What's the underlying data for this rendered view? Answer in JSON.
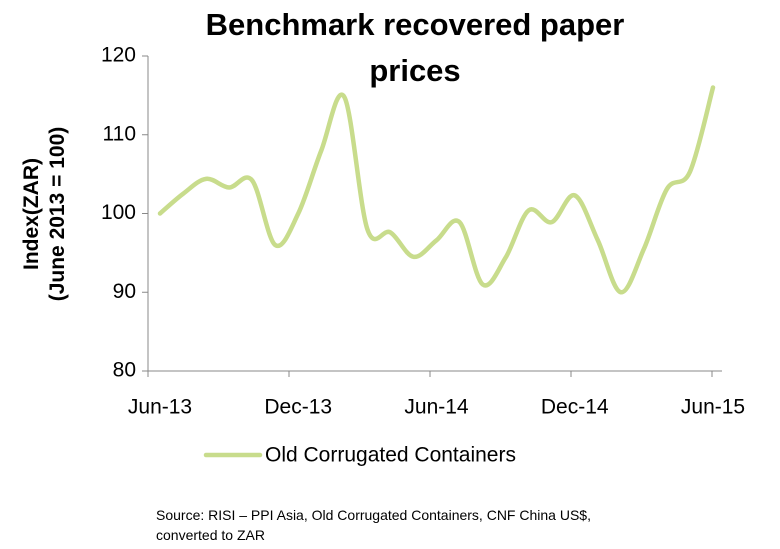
{
  "chart_data": {
    "type": "line",
    "title": "Benchmark recovered paper\nprices",
    "y_label": "Index(ZAR)\n(June 2013 = 100)",
    "categories": [
      "Jun-13",
      null,
      null,
      null,
      null,
      null,
      "Dec-13",
      null,
      null,
      null,
      null,
      null,
      "Jun-14",
      null,
      null,
      null,
      null,
      null,
      "Dec-14",
      null,
      null,
      null,
      null,
      null,
      "Jun-15"
    ],
    "series": [
      {
        "name": "Old Corrugated Containers",
        "color": "#c8dc8c",
        "values": [
          100,
          102.5,
          104.4,
          103.3,
          104.2,
          96,
          100,
          108,
          114.8,
          98,
          97.6,
          94.5,
          96.6,
          98.9,
          91,
          94.4,
          100.4,
          98.9,
          102.3,
          96.6,
          90,
          95.5,
          103.1,
          105.3,
          116
        ]
      }
    ],
    "ylim": [
      80,
      120
    ],
    "yticks": [
      80,
      90,
      100,
      110,
      120
    ],
    "legend": "bottom",
    "source": "Source: RISI – PPI Asia, Old Corrugated Containers, CNF China US$,\nconverted to ZAR"
  }
}
